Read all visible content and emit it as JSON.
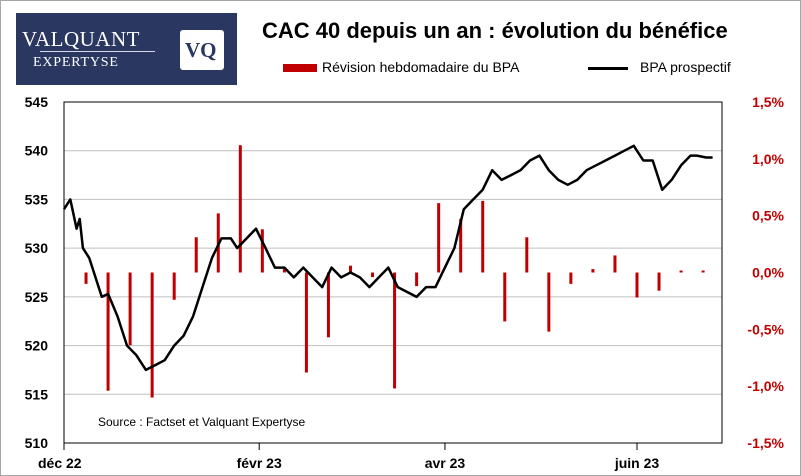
{
  "logo": {
    "line1": "VALQUANT",
    "line2": "EXPERTYSE",
    "monogram": "VQ"
  },
  "colors": {
    "bar": "#c00000",
    "line": "#000000",
    "logo_bg": "#2a3761",
    "axis_right": "#c00000"
  },
  "chart_data": {
    "type": "bar+line",
    "title": "CAC 40 depuis un an : évolution du bénéfice",
    "source": "Source : Factset et Valquant Expertyse",
    "legend": {
      "placement": "top",
      "bars": "Révision hebdomadaire du BPA",
      "line": "BPA prospectif"
    },
    "x_ticks": [
      "déc 22",
      "févr 23",
      "avr 23",
      "juin 23"
    ],
    "y_left": {
      "ylim": [
        510,
        545
      ],
      "ticks": [
        "510",
        "515",
        "520",
        "525",
        "530",
        "535",
        "540",
        "545"
      ]
    },
    "y_right": {
      "ylim": [
        -1.5,
        1.5
      ],
      "ticks": [
        "-1,5%",
        "-1,0%",
        "-0,5%",
        "0,0%",
        "0,5%",
        "1,0%",
        "1,5%"
      ]
    },
    "grid": "horizontal",
    "bars_series": {
      "name": "Révision hebdomadaire du BPA",
      "axis": "right",
      "x_date": [
        "2022-12-08",
        "2022-12-15",
        "2022-12-22",
        "2022-12-29",
        "2023-01-05",
        "2023-01-12",
        "2023-01-19",
        "2023-01-26",
        "2023-02-02",
        "2023-02-09",
        "2023-02-16",
        "2023-02-23",
        "2023-03-02",
        "2023-03-09",
        "2023-03-16",
        "2023-03-23",
        "2023-03-30",
        "2023-04-06",
        "2023-04-13",
        "2023-04-20",
        "2023-04-27",
        "2023-05-04",
        "2023-05-11",
        "2023-05-18",
        "2023-05-25",
        "2023-06-01",
        "2023-06-08",
        "2023-06-15",
        "2023-06-22"
      ],
      "values": [
        -0.1,
        -1.04,
        -0.64,
        -1.1,
        -0.24,
        0.31,
        0.52,
        1.12,
        0.38,
        0.03,
        -0.88,
        -0.57,
        0.06,
        -0.04,
        -1.02,
        -0.12,
        0.61,
        0.47,
        0.63,
        -0.43,
        0.31,
        -0.52,
        -0.1,
        0.03,
        0.15,
        -0.22,
        -0.16,
        0,
        0
      ]
    },
    "line_series": {
      "name": "BPA prospectif",
      "axis": "left",
      "x_date": [
        "2022-12-01",
        "2022-12-03",
        "2022-12-05",
        "2022-12-06",
        "2022-12-07",
        "2022-12-09",
        "2022-12-11",
        "2022-12-13",
        "2022-12-15",
        "2022-12-18",
        "2022-12-21",
        "2022-12-24",
        "2022-12-27",
        "2022-12-30",
        "2023-01-02",
        "2023-01-05",
        "2023-01-08",
        "2023-01-11",
        "2023-01-14",
        "2023-01-17",
        "2023-01-20",
        "2023-01-23",
        "2023-01-25",
        "2023-01-28",
        "2023-01-31",
        "2023-02-03",
        "2023-02-06",
        "2023-02-09",
        "2023-02-12",
        "2023-02-15",
        "2023-02-18",
        "2023-02-21",
        "2023-02-24",
        "2023-02-27",
        "2023-03-02",
        "2023-03-05",
        "2023-03-08",
        "2023-03-11",
        "2023-03-14",
        "2023-03-17",
        "2023-03-20",
        "2023-03-23",
        "2023-03-26",
        "2023-03-29",
        "2023-04-01",
        "2023-04-04",
        "2023-04-07",
        "2023-04-10",
        "2023-04-13",
        "2023-04-16",
        "2023-04-19",
        "2023-04-22",
        "2023-04-25",
        "2023-04-28",
        "2023-05-01",
        "2023-05-04",
        "2023-05-07",
        "2023-05-10",
        "2023-05-13",
        "2023-05-16",
        "2023-05-19",
        "2023-05-22",
        "2023-05-25",
        "2023-05-28",
        "2023-05-31",
        "2023-06-03",
        "2023-06-06",
        "2023-06-09",
        "2023-06-12",
        "2023-06-15",
        "2023-06-18",
        "2023-06-20",
        "2023-06-23",
        "2023-06-25"
      ],
      "values": [
        534,
        535,
        532,
        533,
        530,
        529,
        527,
        525,
        525.3,
        523,
        520,
        519,
        517.5,
        518,
        518.5,
        520,
        521,
        523,
        526,
        529,
        531,
        531,
        530,
        531,
        532,
        530,
        528,
        528,
        527,
        528,
        527,
        526,
        528,
        527,
        527.5,
        527,
        526,
        527,
        528,
        526,
        525.5,
        525,
        526,
        526,
        528,
        530,
        534,
        535,
        536,
        538,
        537,
        537.5,
        538,
        539,
        539.5,
        538,
        537,
        536.5,
        537,
        538,
        538.5,
        539,
        539.5,
        540,
        540.5,
        539,
        539,
        536,
        537,
        538.5,
        539.5,
        539.5,
        539.3,
        539.3
      ]
    }
  }
}
